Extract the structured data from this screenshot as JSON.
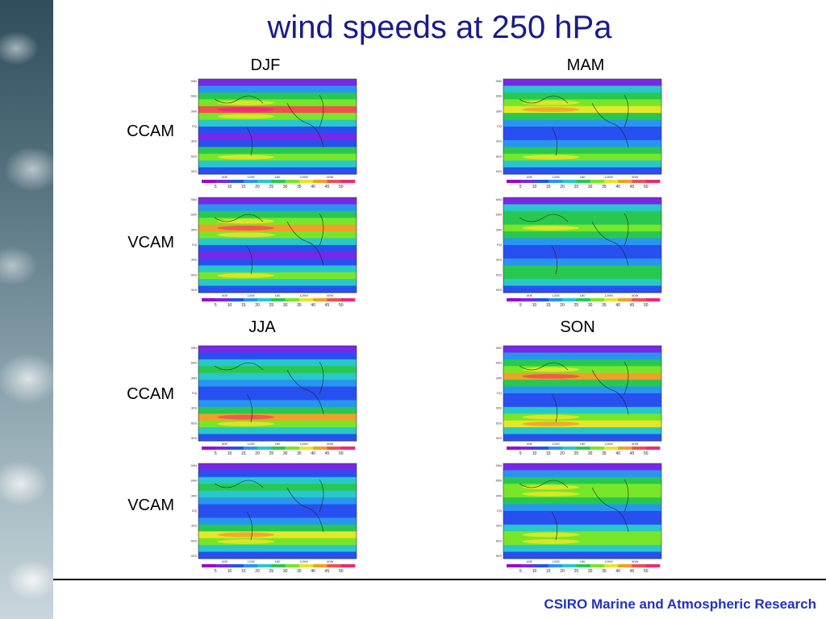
{
  "slide": {
    "title": "wind speeds at 250 hPa",
    "footer": "CSIRO Marine and Atmospheric Research"
  },
  "seasons": [
    "DJF",
    "MAM",
    "JJA",
    "SON"
  ],
  "models": [
    "CCAM",
    "VCAM"
  ],
  "map_lat_labels": [
    "90N",
    "60N",
    "30N",
    "EQ",
    "30S",
    "60S",
    "90S"
  ],
  "map_lon_labels": [
    "60E",
    "120E",
    "180",
    "120W",
    "60W"
  ],
  "colorbar_ticks": [
    "5",
    "10",
    "15",
    "20",
    "25",
    "30",
    "35",
    "40",
    "45",
    "50"
  ],
  "colorbar_colors": [
    "#a000c8",
    "#7828e6",
    "#2850f0",
    "#2896f0",
    "#28c8c8",
    "#28c850",
    "#78e628",
    "#e6e628",
    "#f0a028",
    "#f05050",
    "#f02878"
  ],
  "panels": [
    {
      "season": "DJF",
      "model": "CCAM",
      "bands": [
        1,
        3,
        5,
        6,
        9,
        6,
        4,
        2,
        1,
        2,
        5,
        6,
        4,
        2
      ]
    },
    {
      "season": "MAM",
      "model": "CCAM",
      "bands": [
        1,
        4,
        5,
        6,
        7,
        5,
        3,
        2,
        2,
        3,
        5,
        6,
        4,
        2
      ]
    },
    {
      "season": "DJF",
      "model": "VCAM",
      "bands": [
        1,
        3,
        5,
        6,
        8,
        6,
        4,
        2,
        1,
        2,
        4,
        6,
        4,
        2
      ]
    },
    {
      "season": "MAM",
      "model": "VCAM",
      "bands": [
        1,
        4,
        5,
        5,
        6,
        5,
        3,
        2,
        2,
        3,
        5,
        5,
        4,
        2
      ]
    },
    {
      "season": "JJA",
      "model": "CCAM",
      "bands": [
        1,
        2,
        4,
        5,
        4,
        3,
        2,
        2,
        3,
        5,
        8,
        6,
        4,
        2
      ]
    },
    {
      "season": "SON",
      "model": "CCAM",
      "bands": [
        1,
        3,
        5,
        6,
        8,
        5,
        3,
        2,
        2,
        4,
        6,
        7,
        4,
        2
      ]
    },
    {
      "season": "JJA",
      "model": "VCAM",
      "bands": [
        1,
        2,
        4,
        5,
        4,
        3,
        2,
        2,
        3,
        5,
        7,
        6,
        4,
        2
      ]
    },
    {
      "season": "SON",
      "model": "VCAM",
      "bands": [
        1,
        3,
        5,
        6,
        6,
        5,
        3,
        2,
        2,
        4,
        6,
        6,
        4,
        2
      ]
    }
  ]
}
